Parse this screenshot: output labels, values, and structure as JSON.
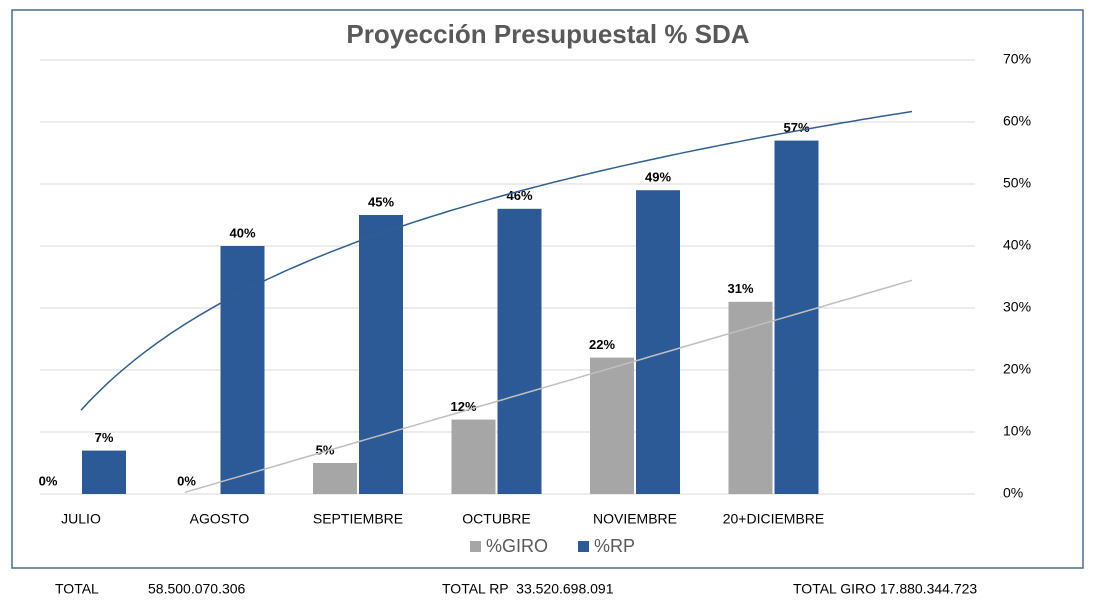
{
  "chart_data": {
    "type": "bar",
    "title": "Proyección Presupuestal % SDA",
    "categories": [
      "JULIO",
      "AGOSTO",
      "SEPTIEMBRE",
      "OCTUBRE",
      "NOVIEMBRE",
      "20+DICIEMBRE"
    ],
    "series": [
      {
        "name": "%GIRO",
        "color": "#a6a6a6",
        "trendline": "linear",
        "trendline_color": "#bfbfbf",
        "values": [
          0,
          0,
          5,
          12,
          22,
          31
        ],
        "value_labels": [
          "0%",
          "0%",
          "5%",
          "12%",
          "22%",
          "31%"
        ]
      },
      {
        "name": "%RP",
        "color": "#2b5a97",
        "trendline": "log",
        "trendline_color": "#2e5f8f",
        "values": [
          7,
          40,
          45,
          46,
          49,
          57
        ],
        "value_labels": [
          "7%",
          "40%",
          "45%",
          "46%",
          "49%",
          "57%"
        ]
      }
    ],
    "ylim": [
      0,
      70
    ],
    "yticks": [
      {
        "value": 0,
        "label": "0%"
      },
      {
        "value": 10,
        "label": "10%"
      },
      {
        "value": 20,
        "label": "20%"
      },
      {
        "value": 30,
        "label": "30%"
      },
      {
        "value": 40,
        "label": "40%"
      },
      {
        "value": 50,
        "label": "50%"
      },
      {
        "value": 60,
        "label": "60%"
      },
      {
        "value": 70,
        "label": "70%"
      }
    ],
    "grid": true,
    "legend": "bottom",
    "annotations": [
      "TOTAL",
      "58.500.070.306",
      "TOTAL RP  33.520.698.091",
      "TOTAL GIRO 17.880.344.723"
    ]
  }
}
